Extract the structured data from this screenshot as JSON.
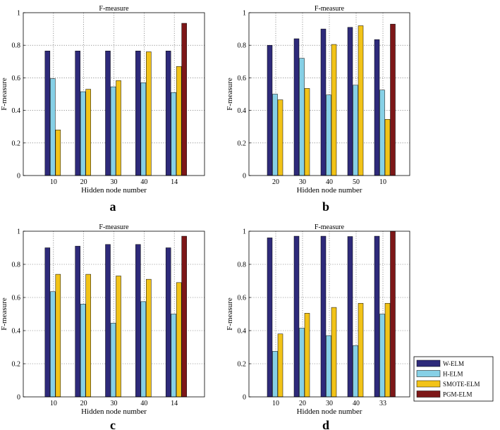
{
  "colors": {
    "W-ELM": "#2e2a7a",
    "H-ELM": "#86d0e6",
    "SMOTE-ELM": "#f2c318",
    "PGM-ELM": "#7d1718"
  },
  "legend": [
    "W-ELM",
    "H-ELM",
    "SMOTE-ELM",
    "PGM-ELM"
  ],
  "chart_data": [
    {
      "type": "bar",
      "label": "a",
      "title": "F-measure",
      "xlabel": "Hidden node number",
      "ylabel": "F-measure",
      "ylim": [
        0,
        1
      ],
      "categories": [
        "10",
        "20",
        "30",
        "40",
        "14"
      ],
      "yticks": [
        "0",
        "0.2",
        "0.4",
        "0.6",
        "0.8",
        "1"
      ],
      "series": [
        {
          "name": "W-ELM",
          "values": [
            0.765,
            0.765,
            0.765,
            0.765,
            0.765
          ]
        },
        {
          "name": "H-ELM",
          "values": [
            0.595,
            0.515,
            0.545,
            0.57,
            0.51
          ]
        },
        {
          "name": "SMOTE-ELM",
          "values": [
            0.28,
            0.53,
            0.583,
            0.76,
            0.67
          ]
        },
        {
          "name": "PGM-ELM",
          "values": [
            null,
            null,
            null,
            null,
            0.935
          ]
        }
      ]
    },
    {
      "type": "bar",
      "label": "b",
      "title": "F-measure",
      "xlabel": "Hidden node number",
      "ylabel": "F-measure",
      "ylim": [
        0,
        1
      ],
      "categories": [
        "20",
        "30",
        "40",
        "50",
        "10"
      ],
      "yticks": [
        "0",
        "0.2",
        "0.4",
        "0.6",
        "0.8",
        "1"
      ],
      "series": [
        {
          "name": "W-ELM",
          "values": [
            0.8,
            0.84,
            0.9,
            0.91,
            0.835
          ]
        },
        {
          "name": "H-ELM",
          "values": [
            0.5,
            0.72,
            0.495,
            0.555,
            0.525
          ]
        },
        {
          "name": "SMOTE-ELM",
          "values": [
            0.465,
            0.535,
            0.805,
            0.92,
            0.345
          ]
        },
        {
          "name": "PGM-ELM",
          "values": [
            null,
            null,
            null,
            null,
            0.93
          ]
        }
      ]
    },
    {
      "type": "bar",
      "label": "c",
      "title": "F-measure",
      "xlabel": "Hidden node number",
      "ylabel": "F-measure",
      "ylim": [
        0,
        1
      ],
      "categories": [
        "10",
        "20",
        "30",
        "40",
        "14"
      ],
      "yticks": [
        "0",
        "0.2",
        "0.4",
        "0.6",
        "0.8",
        "1"
      ],
      "series": [
        {
          "name": "W-ELM",
          "values": [
            0.9,
            0.91,
            0.92,
            0.92,
            0.9
          ]
        },
        {
          "name": "H-ELM",
          "values": [
            0.635,
            0.56,
            0.445,
            0.575,
            0.5
          ]
        },
        {
          "name": "SMOTE-ELM",
          "values": [
            0.74,
            0.74,
            0.73,
            0.71,
            0.69
          ]
        },
        {
          "name": "PGM-ELM",
          "values": [
            null,
            null,
            null,
            null,
            0.97
          ]
        }
      ]
    },
    {
      "type": "bar",
      "label": "d",
      "title": "F-measure",
      "xlabel": "Hidden node number",
      "ylabel": "F-measure",
      "ylim": [
        0,
        1
      ],
      "categories": [
        "10",
        "20",
        "30",
        "40",
        "33"
      ],
      "yticks": [
        "0",
        "0.2",
        "0.4",
        "0.6",
        "0.8",
        "1"
      ],
      "series": [
        {
          "name": "W-ELM",
          "values": [
            0.96,
            0.97,
            0.97,
            0.968,
            0.97
          ]
        },
        {
          "name": "H-ELM",
          "values": [
            0.275,
            0.415,
            0.37,
            0.31,
            0.5
          ]
        },
        {
          "name": "SMOTE-ELM",
          "values": [
            0.38,
            0.505,
            0.54,
            0.565,
            0.565
          ]
        },
        {
          "name": "PGM-ELM",
          "values": [
            null,
            null,
            null,
            null,
            1.0
          ]
        }
      ]
    }
  ]
}
